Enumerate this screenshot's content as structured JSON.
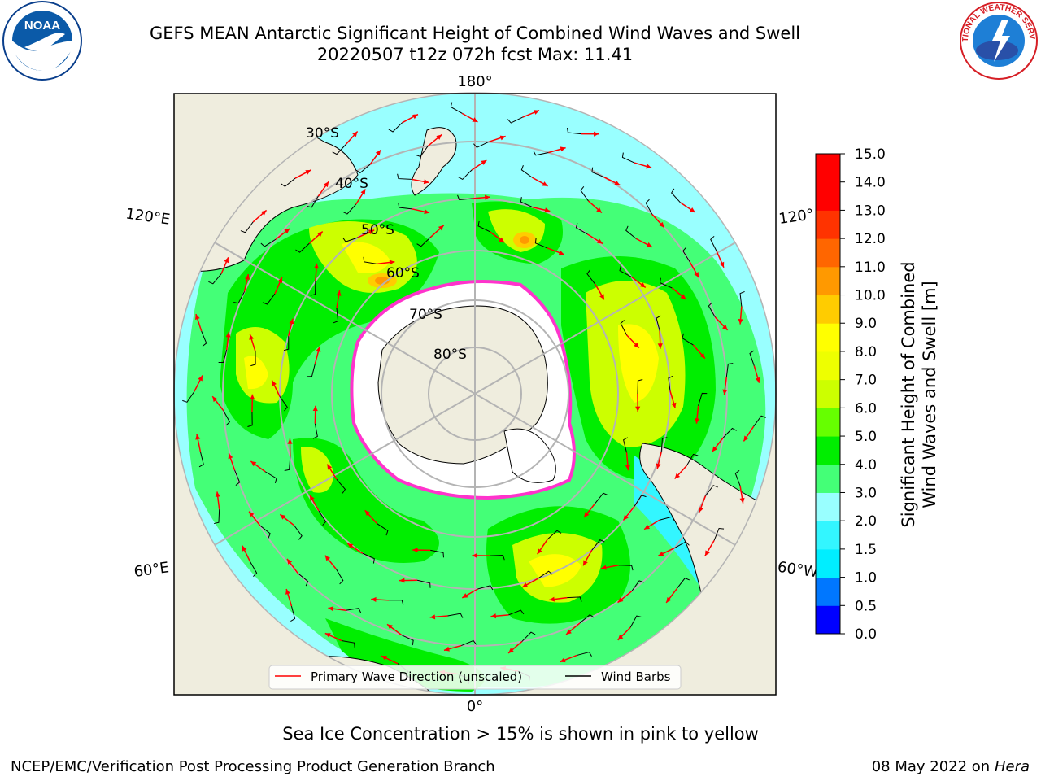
{
  "title_line1": "GEFS MEAN Antarctic Significant Height of Combined Wind Waves and Swell",
  "title_line2": "20220507 t12z 072h fcst   Max: 11.41",
  "logos": {
    "left": {
      "text": "NOAA",
      "ring_text": "NATIONAL OCEANIC AND ATMOSPHERIC ADMINISTRATION · U.S. DEPARTMENT OF COMMERCE"
    },
    "right": {
      "ring_text": "NATIONAL WEATHER SERVICE"
    }
  },
  "map": {
    "longitude_labels": [
      "180°",
      "120°E",
      "120°",
      "60°E",
      "60°W",
      "0°"
    ],
    "latitude_labels": [
      "30°S",
      "40°S",
      "50°S",
      "60°S",
      "70°S",
      "80°S"
    ],
    "legend": [
      {
        "label": "Primary Wave Direction (unscaled)",
        "color": "#ff0000"
      },
      {
        "label": "Wind Barbs",
        "color": "#000000"
      }
    ],
    "colors": {
      "land": "#efedde",
      "ice": "#ffffff",
      "sea_ice_edge": "#ff33cc"
    }
  },
  "colorbar": {
    "label_line1": "Significant Height of Combined",
    "label_line2": "Wind Waves and Swell [m]",
    "ticks": [
      "0.0",
      "0.5",
      "1.0",
      "1.5",
      "2.0",
      "3.0",
      "4.0",
      "5.0",
      "6.0",
      "7.0",
      "8.0",
      "9.0",
      "10.0",
      "11.0",
      "12.0",
      "13.0",
      "14.0",
      "15.0"
    ],
    "colors": [
      "#0000ff",
      "#0077ff",
      "#00eeff",
      "#33f6ff",
      "#99ffff",
      "#44ff77",
      "#00ee00",
      "#66ff00",
      "#ccff00",
      "#eeff00",
      "#ffff00",
      "#ffcc00",
      "#ff9900",
      "#ff6600",
      "#ff3300",
      "#ff0000",
      "#ff0000"
    ]
  },
  "note": "Sea Ice Concentration > 15% is shown in pink to yellow",
  "footer_left": "NCEP/EMC/Verification Post Processing Product Generation Branch",
  "footer_right_date": "08 May 2022 on",
  "footer_right_host": "Hera"
}
